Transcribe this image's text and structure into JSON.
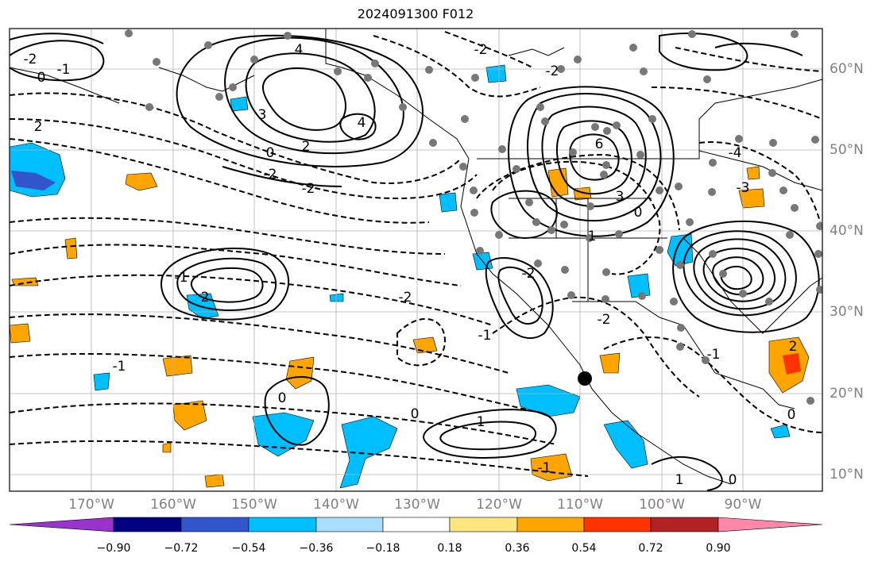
{
  "title": "2024091300 F012",
  "map": {
    "lon_ticks": [
      "170°W",
      "160°W",
      "150°W",
      "140°W",
      "130°W",
      "120°W",
      "110°W",
      "100°W",
      "90°W"
    ],
    "lat_ticks": [
      "60°N",
      "50°N",
      "40°N",
      "30°N",
      "20°N",
      "10°N"
    ],
    "contour_labels": [
      {
        "text": "4"
      },
      {
        "text": "3"
      },
      {
        "text": "4"
      },
      {
        "text": "2"
      },
      {
        "text": "0"
      },
      {
        "text": "-2"
      },
      {
        "text": "-2"
      },
      {
        "text": "6"
      },
      {
        "text": "3"
      },
      {
        "text": "0"
      },
      {
        "text": "1"
      },
      {
        "text": "-2"
      },
      {
        "text": "-2"
      },
      {
        "text": "-1"
      },
      {
        "text": "0"
      },
      {
        "text": "1"
      },
      {
        "text": "-1"
      },
      {
        "text": "0"
      },
      {
        "text": "-2"
      },
      {
        "text": "-1"
      },
      {
        "text": "2"
      },
      {
        "text": "-1"
      },
      {
        "text": "2"
      },
      {
        "text": "0"
      },
      {
        "text": "-2"
      },
      {
        "text": "1"
      },
      {
        "text": "0"
      },
      {
        "text": "2"
      },
      {
        "text": "-3"
      },
      {
        "text": "-4"
      },
      {
        "text": "-1"
      },
      {
        "text": "-2"
      },
      {
        "text": "0"
      },
      {
        "text": "-1"
      },
      {
        "text": "-2"
      }
    ]
  },
  "colorbar": {
    "colors": [
      "#9933cc",
      "#000080",
      "#3355cc",
      "#00bfff",
      "#aadeff",
      "#ffffff",
      "#ffe680",
      "#ffa500",
      "#ff3300",
      "#b22222",
      "#ff88aa"
    ],
    "tick_labels": [
      "−0.90",
      "−0.72",
      "−0.54",
      "−0.36",
      "−0.18",
      "0.18",
      "0.36",
      "0.54",
      "0.72",
      "0.90"
    ]
  }
}
